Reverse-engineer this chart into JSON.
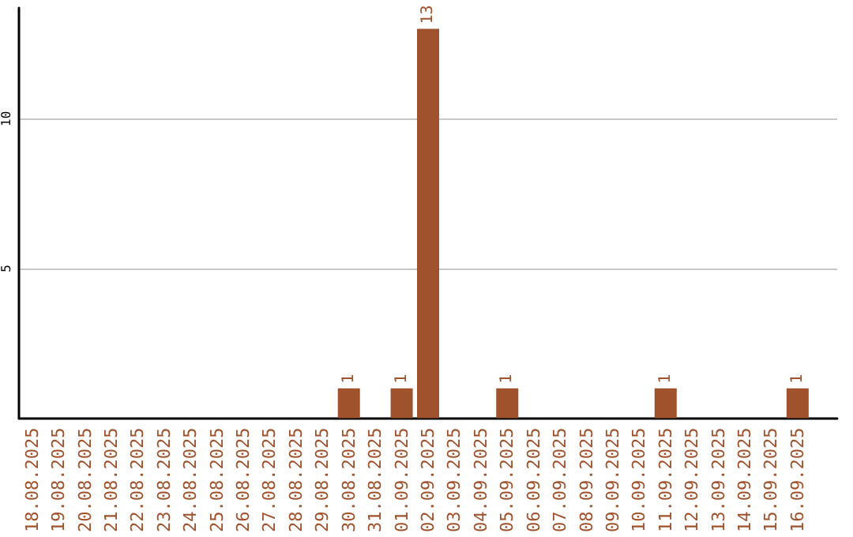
{
  "chart_data": {
    "type": "bar",
    "categories": [
      "18.08.2025",
      "19.08.2025",
      "20.08.2025",
      "21.08.2025",
      "22.08.2025",
      "23.08.2025",
      "24.08.2025",
      "25.08.2025",
      "26.08.2025",
      "27.08.2025",
      "28.08.2025",
      "29.08.2025",
      "30.08.2025",
      "31.08.2025",
      "01.09.2025",
      "02.09.2025",
      "03.09.2025",
      "04.09.2025",
      "05.09.2025",
      "06.09.2025",
      "07.09.2025",
      "08.09.2025",
      "09.09.2025",
      "10.09.2025",
      "11.09.2025",
      "12.09.2025",
      "13.09.2025",
      "14.09.2025",
      "15.09.2025",
      "16.09.2025"
    ],
    "values": [
      0,
      0,
      0,
      0,
      0,
      0,
      0,
      0,
      0,
      0,
      0,
      0,
      1,
      0,
      1,
      13,
      0,
      0,
      1,
      0,
      0,
      0,
      0,
      0,
      1,
      0,
      0,
      0,
      0,
      1
    ],
    "value_labels": [
      null,
      null,
      null,
      null,
      null,
      null,
      null,
      null,
      null,
      null,
      null,
      null,
      "1",
      null,
      "1",
      "13",
      null,
      null,
      "1",
      null,
      null,
      null,
      null,
      null,
      "1",
      null,
      null,
      null,
      null,
      "1"
    ],
    "color": "#a0522d",
    "ylim": [
      0,
      13.7
    ],
    "yticks": [
      5,
      10
    ],
    "grid": "y"
  }
}
